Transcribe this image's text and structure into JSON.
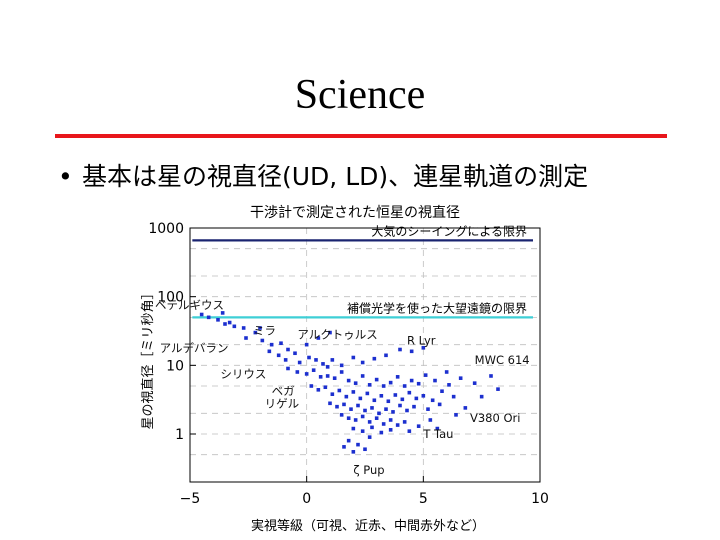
{
  "slide": {
    "title": "Science",
    "bullet": "基本は星の視直径(UD, LD)、連星軌道の測定"
  },
  "colors": {
    "rule": "#e8161b",
    "points": "#1c2fcf",
    "seeing_line": "#1a2470",
    "ao_line": "#3ecfd6",
    "grid": "#bfbfbf"
  },
  "chart_data": {
    "type": "scatter",
    "title": "干渉計で測定された恒星の視直径",
    "xlabel": "実視等級（可視、近赤、中間赤外など）",
    "ylabel": "星の視直径［ミリ秒角］",
    "xlim": [
      -5,
      10
    ],
    "ylim": [
      0.2,
      1000
    ],
    "yscale": "log",
    "x_ticks": [
      -5,
      0,
      5,
      10
    ],
    "x_tick_labels": [
      "−5",
      "0",
      "5",
      "10"
    ],
    "y_ticks": [
      1,
      10,
      100,
      1000
    ],
    "y_tick_labels": [
      "1",
      "10",
      "100",
      "1000"
    ],
    "grid": true,
    "limits": [
      {
        "label": "大気のシーイングによる限界",
        "y": 660,
        "x_from": -4.9,
        "x_to": 9.7,
        "color": "#1a2470"
      },
      {
        "label": "補償光学を使った大望遠鏡の限界",
        "y": 50,
        "x_from": -4.9,
        "x_to": 9.7,
        "color": "#3ecfd6"
      }
    ],
    "annotations": [
      {
        "text": "ベテルギウス",
        "x": -6.5,
        "y": 75
      },
      {
        "text": "ミラ",
        "x": -2.3,
        "y": 32
      },
      {
        "text": "アルクトゥルス",
        "x": -0.4,
        "y": 28
      },
      {
        "text": "R Lyr",
        "x": 4.3,
        "y": 23
      },
      {
        "text": "アルデバラン",
        "x": -6.3,
        "y": 18
      },
      {
        "text": "MWC 614",
        "x": 7.2,
        "y": 12
      },
      {
        "text": "シリウス",
        "x": -3.7,
        "y": 7.5
      },
      {
        "text": "ベガ",
        "x": -1.5,
        "y": 4.2
      },
      {
        "text": "リゲル",
        "x": -1.8,
        "y": 2.8
      },
      {
        "text": "V380 Ori",
        "x": 7.0,
        "y": 1.7
      },
      {
        "text": "T Tau",
        "x": 5.0,
        "y": 1.0
      },
      {
        "text": "ζ Pup",
        "x": 2.0,
        "y": 0.3
      }
    ],
    "series": [
      {
        "points": [
          [
            -4.5,
            55
          ],
          [
            -4.2,
            50
          ],
          [
            -3.8,
            46
          ],
          [
            -3.5,
            40
          ],
          [
            -3.3,
            42
          ],
          [
            -3.1,
            37
          ],
          [
            -2.7,
            35
          ],
          [
            -2.6,
            25
          ],
          [
            -2.2,
            30
          ],
          [
            -1.9,
            23
          ],
          [
            -1.5,
            20
          ],
          [
            -1.1,
            21
          ],
          [
            -0.8,
            17
          ],
          [
            0.0,
            20
          ],
          [
            -1.2,
            14
          ],
          [
            -0.9,
            12
          ],
          [
            -0.5,
            15
          ],
          [
            -0.3,
            11
          ],
          [
            0.1,
            13
          ],
          [
            0.4,
            12
          ],
          [
            0.7,
            10.5
          ],
          [
            1.1,
            12
          ],
          [
            1.5,
            10
          ],
          [
            2.0,
            13
          ],
          [
            2.4,
            11
          ],
          [
            2.9,
            12.5
          ],
          [
            3.4,
            14
          ],
          [
            4.0,
            17
          ],
          [
            4.5,
            16
          ],
          [
            5.0,
            18
          ],
          [
            0.5,
            25
          ],
          [
            1.0,
            30
          ],
          [
            -0.8,
            9
          ],
          [
            -0.4,
            8
          ],
          [
            0.0,
            7.5
          ],
          [
            0.3,
            8.5
          ],
          [
            0.6,
            6.8
          ],
          [
            0.9,
            7
          ],
          [
            1.2,
            6.5
          ],
          [
            1.5,
            8
          ],
          [
            1.8,
            6
          ],
          [
            2.1,
            5.5
          ],
          [
            2.4,
            7
          ],
          [
            2.7,
            5.2
          ],
          [
            3.0,
            6.2
          ],
          [
            3.3,
            5
          ],
          [
            3.6,
            5.6
          ],
          [
            3.9,
            6.8
          ],
          [
            4.2,
            5
          ],
          [
            4.5,
            6
          ],
          [
            4.8,
            5.4
          ],
          [
            5.1,
            7.2
          ],
          [
            5.5,
            6
          ],
          [
            6.0,
            8
          ],
          [
            6.6,
            6.5
          ],
          [
            7.2,
            5.5
          ],
          [
            7.9,
            7
          ],
          [
            0.2,
            5
          ],
          [
            0.5,
            4.4
          ],
          [
            0.8,
            4.8
          ],
          [
            1.1,
            3.8
          ],
          [
            1.4,
            4.3
          ],
          [
            1.7,
            3.5
          ],
          [
            2.0,
            4.1
          ],
          [
            2.3,
            3.3
          ],
          [
            2.6,
            3.9
          ],
          [
            2.9,
            3.1
          ],
          [
            3.2,
            3.6
          ],
          [
            3.5,
            3
          ],
          [
            3.8,
            3.7
          ],
          [
            4.1,
            3.2
          ],
          [
            4.4,
            4
          ],
          [
            4.7,
            3.3
          ],
          [
            5.0,
            3.6
          ],
          [
            5.4,
            3.1
          ],
          [
            5.8,
            4.2
          ],
          [
            6.3,
            3.5
          ],
          [
            1.0,
            2.8
          ],
          [
            1.3,
            2.5
          ],
          [
            1.6,
            2.7
          ],
          [
            1.9,
            2.3
          ],
          [
            2.2,
            2.6
          ],
          [
            2.5,
            2.2
          ],
          [
            2.8,
            2.4
          ],
          [
            3.1,
            2
          ],
          [
            3.4,
            2.3
          ],
          [
            3.7,
            2.1
          ],
          [
            4.0,
            2.6
          ],
          [
            4.3,
            2.2
          ],
          [
            4.6,
            2.5
          ],
          [
            5.2,
            2.3
          ],
          [
            5.7,
            2.7
          ],
          [
            1.5,
            1.9
          ],
          [
            1.8,
            1.7
          ],
          [
            2.1,
            1.6
          ],
          [
            2.4,
            1.8
          ],
          [
            2.7,
            1.5
          ],
          [
            3.0,
            1.7
          ],
          [
            3.3,
            1.4
          ],
          [
            3.6,
            1.6
          ],
          [
            3.9,
            1.35
          ],
          [
            4.2,
            1.5
          ],
          [
            4.8,
            1.3
          ],
          [
            5.3,
            1.6
          ],
          [
            6.4,
            1.9
          ],
          [
            2.0,
            1.2
          ],
          [
            2.4,
            1.1
          ],
          [
            2.8,
            1.25
          ],
          [
            3.2,
            1.05
          ],
          [
            3.6,
            1.15
          ],
          [
            4.4,
            1.1
          ],
          [
            5.6,
            1.2
          ],
          [
            1.8,
            0.8
          ],
          [
            2.2,
            0.7
          ],
          [
            2.0,
            0.55
          ],
          [
            2.5,
            0.6
          ],
          [
            1.6,
            0.65
          ],
          [
            2.7,
            0.9
          ],
          [
            6.8,
            2.4
          ],
          [
            7.5,
            3.5
          ],
          [
            8.2,
            4.5
          ],
          [
            6.1,
            5.2
          ],
          [
            0.9,
            9.5
          ],
          [
            -1.6,
            16
          ],
          [
            -2.0,
            35
          ],
          [
            -3.6,
            58
          ]
        ]
      }
    ]
  }
}
